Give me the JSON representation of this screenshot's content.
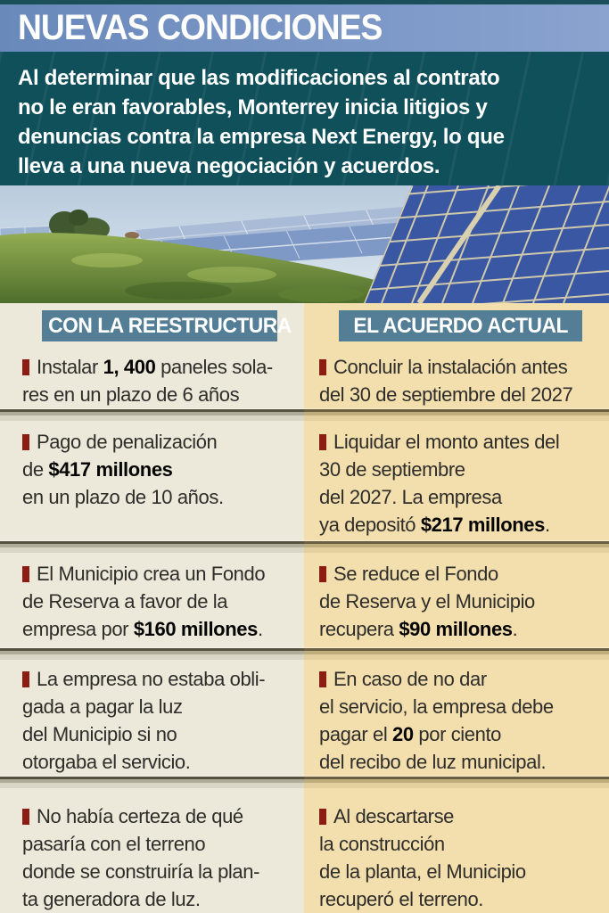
{
  "title": "NUEVAS CONDICIONES",
  "intro": "Al determinar que las modificaciones al contrato\nno le eran favorables, Monterrey inicia litigios y\ndenuncias contra la empresa Next Energy, lo que\nlleva a una nueva negociación y acuerdos.",
  "columns": {
    "left": {
      "header": "CON LA REESTRUCTURA",
      "items": [
        {
          "segments": [
            {
              "t": "Instalar ",
              "b": false
            },
            {
              "t": "1, 400",
              "b": true
            },
            {
              "t": " paneles sola-\nres en un plazo de 6 años",
              "b": false
            }
          ]
        },
        {
          "segments": [
            {
              "t": "Pago de penalización\nde ",
              "b": false
            },
            {
              "t": "$417 millones",
              "b": true
            },
            {
              "t": "\nen un plazo de 10 años.",
              "b": false
            }
          ]
        },
        {
          "segments": [
            {
              "t": "El Municipio crea un Fondo\nde Reserva a favor de la\nempresa por ",
              "b": false
            },
            {
              "t": "$160 millones",
              "b": true
            },
            {
              "t": ".",
              "b": false
            }
          ]
        },
        {
          "segments": [
            {
              "t": "La empresa no estaba obli-\ngada a pagar la luz\ndel Municipio si no\notorgaba el servicio.",
              "b": false
            }
          ]
        },
        {
          "segments": [
            {
              "t": "No había certeza de qué\npasaría con el terreno\ndonde se construiría la plan-\nta generadora de luz.",
              "b": false
            }
          ]
        }
      ]
    },
    "right": {
      "header": "EL ACUERDO ACTUAL",
      "items": [
        {
          "segments": [
            {
              "t": "Concluir la instalación antes\ndel 30 de septiembre del 2027",
              "b": false
            }
          ]
        },
        {
          "segments": [
            {
              "t": "Liquidar el monto antes del\n30 de septiembre\ndel 2027. La empresa\nya depositó ",
              "b": false
            },
            {
              "t": "$217 millones",
              "b": true
            },
            {
              "t": ".",
              "b": false
            }
          ]
        },
        {
          "segments": [
            {
              "t": "Se reduce el Fondo\nde Reserva y el Municipio\nrecupera ",
              "b": false
            },
            {
              "t": "$90 millones",
              "b": true
            },
            {
              "t": ".",
              "b": false
            }
          ]
        },
        {
          "segments": [
            {
              "t": "En caso de no dar\nel servicio, la empresa debe\npagar el ",
              "b": false
            },
            {
              "t": "20",
              "b": true
            },
            {
              "t": " por ciento\ndel recibo de luz municipal.",
              "b": false
            }
          ]
        },
        {
          "segments": [
            {
              "t": "Al descartarse\nla construcción\nde la planta, el Municipio\nrecuperó el terreno.",
              "b": false
            }
          ]
        }
      ]
    }
  },
  "colors": {
    "top_strip": "#1b505a",
    "title_band": "#7b97c6",
    "title_text": "#ffffff",
    "intro_bg": "#10505b",
    "left_column_bg": "#ece9da",
    "right_column_bg": "#f3dfae",
    "column_header_bar": "#537e95",
    "bullet": "#8c1d12",
    "body_text": "#2e2d2a"
  }
}
